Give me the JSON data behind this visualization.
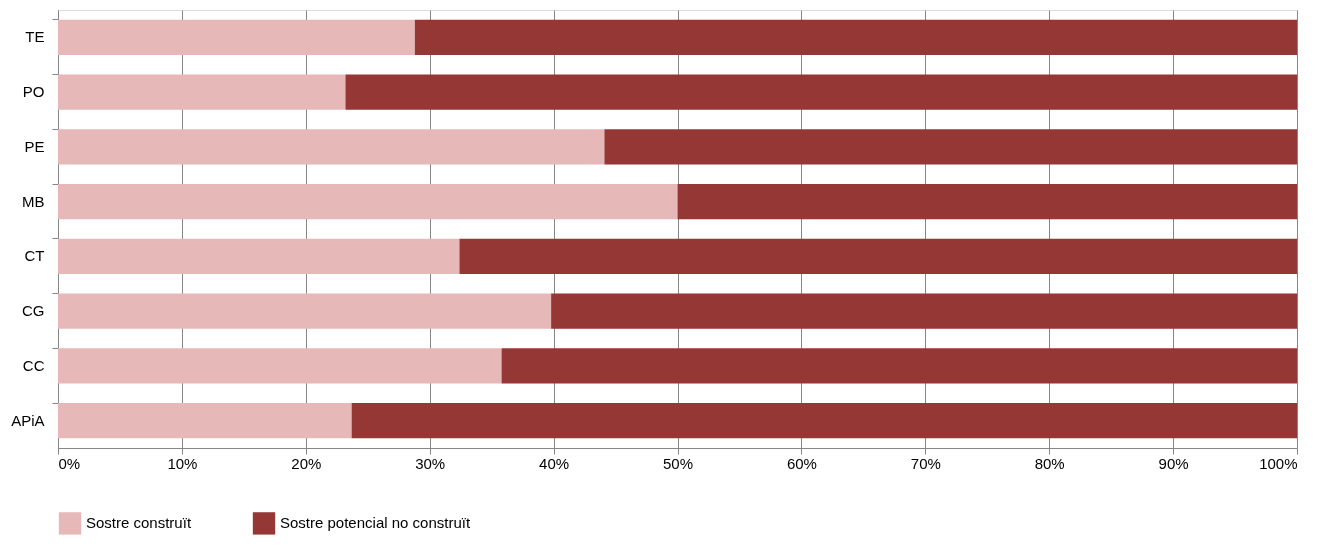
{
  "chart_data": {
    "type": "bar",
    "orientation": "horizontal",
    "stacked": true,
    "categories": [
      "TE",
      "PO",
      "PE",
      "MB",
      "CT",
      "CG",
      "CC",
      "APiA"
    ],
    "series": [
      {
        "name": "Sostre construït",
        "color": "#e6b9b8",
        "values": [
          28.8,
          23.2,
          44.1,
          50.0,
          32.4,
          39.8,
          35.8,
          23.7
        ]
      },
      {
        "name": "Sostre potencial no construït",
        "color": "#953735",
        "values": [
          71.2,
          76.8,
          55.9,
          50.0,
          67.6,
          60.2,
          64.2,
          76.3
        ]
      }
    ],
    "xlim": [
      0,
      100
    ],
    "xticks": [
      {
        "value": 0,
        "label": "0%"
      },
      {
        "value": 10,
        "label": "10%"
      },
      {
        "value": 20,
        "label": "20%"
      },
      {
        "value": 30,
        "label": "30%"
      },
      {
        "value": 40,
        "label": "40%"
      },
      {
        "value": 50,
        "label": "50%"
      },
      {
        "value": 60,
        "label": "60%"
      },
      {
        "value": 70,
        "label": "70%"
      },
      {
        "value": 80,
        "label": "80%"
      },
      {
        "value": 90,
        "label": "90%"
      },
      {
        "value": 100,
        "label": "100%"
      }
    ],
    "grid": "x",
    "legend": "bottom"
  }
}
